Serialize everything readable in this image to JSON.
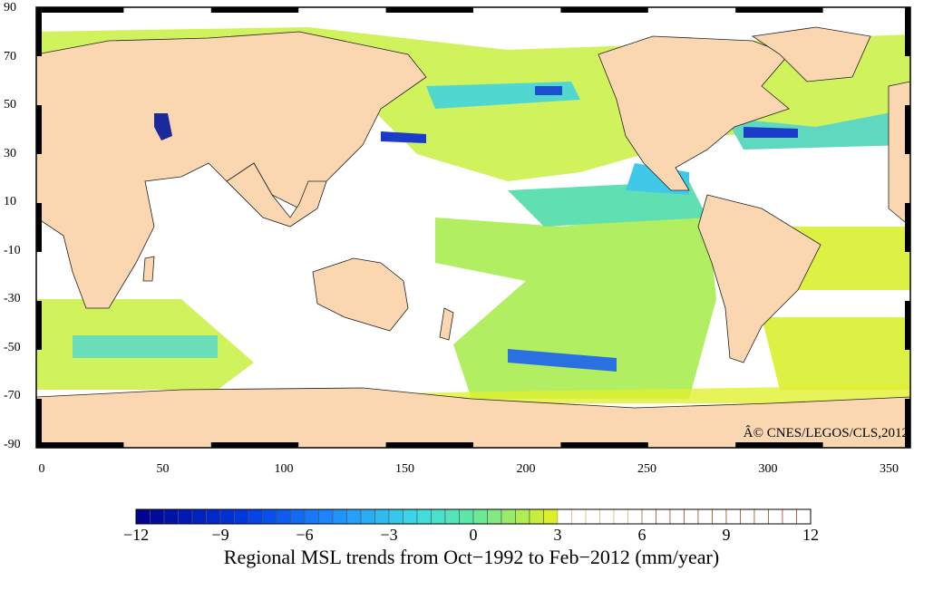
{
  "map": {
    "title": "Regional MSL trends from Oct−1992 to Feb−2012 (mm/year)",
    "copyright": "Â© CNES/LEGOS/CLS,2012",
    "lat_ticks": [
      "90",
      "70",
      "50",
      "30",
      "10",
      "-10",
      "-30",
      "-50",
      "-70",
      "-90"
    ],
    "lon_ticks": [
      "0",
      "50",
      "100",
      "150",
      "200",
      "250",
      "300",
      "350"
    ],
    "colorbar": {
      "min": -12,
      "max": 12,
      "ticks": [
        "−12",
        "−9",
        "−6",
        "−3",
        "0",
        "3",
        "6",
        "9",
        "12"
      ],
      "colors": {
        "neg_strong": "#00008b",
        "neg_mid": "#1e78ff",
        "neg_light": "#3ad8e8",
        "zero": "#60e8a0",
        "pos_light": "#e8f020",
        "land": "#fad7b0"
      }
    }
  }
}
